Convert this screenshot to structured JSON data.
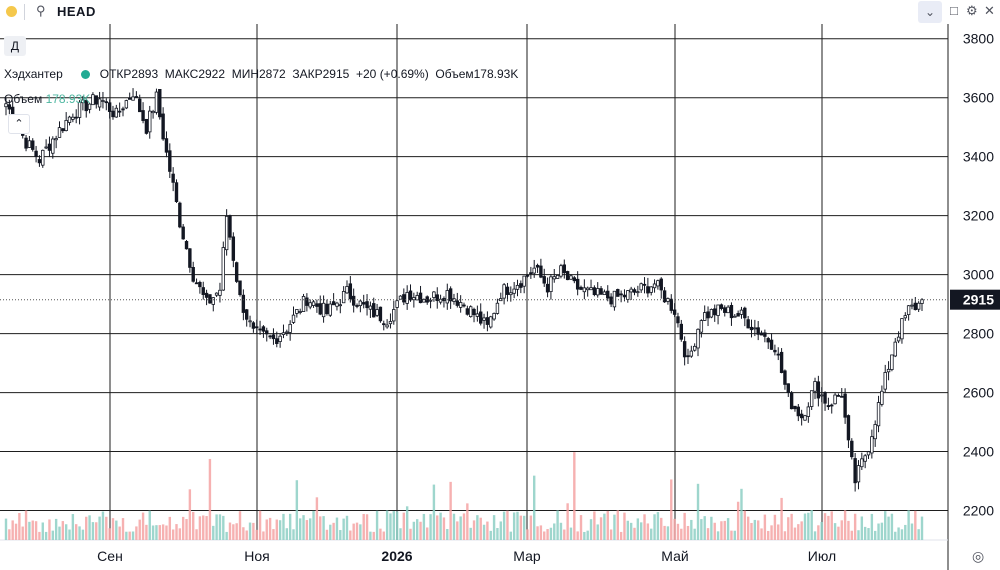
{
  "topbar": {
    "search_icon": "search-icon",
    "symbol": "HEAD",
    "chevron_icon": "chevron-down-icon",
    "restore_icon": "square-icon",
    "settings_icon": "gear-icon",
    "close_icon": "close-icon"
  },
  "timeframe": "Д",
  "legend": {
    "name": "Хэдхантер",
    "open_label": "ОТКР",
    "open": "2893",
    "high_label": "МАКС",
    "high": "2922",
    "low_label": "МИН",
    "low": "2872",
    "close_label": "ЗАКР",
    "close": "2915",
    "change": "+20 (+0.69%)",
    "volume_label": "Объем",
    "volume": "178.93K"
  },
  "volume_legend": {
    "label": "Объем",
    "value": "178.93K"
  },
  "colors": {
    "up": "#26a69a",
    "down": "#ef5350",
    "candle": "#131722",
    "vol_up": "#8dcfc4",
    "vol_down": "#f5a3a3"
  },
  "chart_data": {
    "type": "candlestick",
    "x_ticks": [
      "Сен",
      "Ноя",
      "2026",
      "Мар",
      "Май",
      "Июл"
    ],
    "y_ticks": [
      "3800",
      "3600",
      "3400",
      "3200",
      "3000",
      "2800",
      "2600",
      "2400",
      "2200"
    ],
    "ylim": [
      2100,
      3850
    ],
    "last_price": "2915",
    "grid": true,
    "anchors": [
      [
        0,
        3580
      ],
      [
        6,
        3450
      ],
      [
        10,
        3390
      ],
      [
        14,
        3460
      ],
      [
        20,
        3550
      ],
      [
        28,
        3600
      ],
      [
        33,
        3540
      ],
      [
        38,
        3620
      ],
      [
        42,
        3500
      ],
      [
        45,
        3600
      ],
      [
        48,
        3410
      ],
      [
        50,
        3300
      ],
      [
        52,
        3180
      ],
      [
        56,
        3000
      ],
      [
        60,
        2900
      ],
      [
        64,
        2950
      ],
      [
        66,
        3200
      ],
      [
        70,
        2920
      ],
      [
        74,
        2800
      ],
      [
        80,
        2780
      ],
      [
        84,
        2820
      ],
      [
        90,
        2920
      ],
      [
        96,
        2870
      ],
      [
        102,
        2940
      ],
      [
        108,
        2880
      ],
      [
        114,
        2850
      ],
      [
        120,
        2940
      ],
      [
        126,
        2920
      ],
      [
        132,
        2940
      ],
      [
        138,
        2890
      ],
      [
        144,
        2820
      ],
      [
        148,
        2940
      ],
      [
        154,
        2980
      ],
      [
        158,
        3020
      ],
      [
        162,
        2960
      ],
      [
        166,
        3010
      ],
      [
        170,
        2960
      ],
      [
        176,
        2930
      ],
      [
        182,
        2920
      ],
      [
        188,
        2940
      ],
      [
        194,
        2970
      ],
      [
        200,
        2880
      ],
      [
        204,
        2700
      ],
      [
        208,
        2860
      ],
      [
        214,
        2880
      ],
      [
        220,
        2860
      ],
      [
        226,
        2800
      ],
      [
        230,
        2760
      ],
      [
        234,
        2580
      ],
      [
        238,
        2520
      ],
      [
        242,
        2620
      ],
      [
        246,
        2560
      ],
      [
        250,
        2600
      ],
      [
        252,
        2420
      ],
      [
        254,
        2300
      ],
      [
        258,
        2420
      ],
      [
        262,
        2600
      ],
      [
        266,
        2780
      ],
      [
        270,
        2880
      ],
      [
        274,
        2905
      ]
    ],
    "n_candles": 275,
    "volume": {
      "label": "Объем",
      "last": "178.93K"
    }
  }
}
